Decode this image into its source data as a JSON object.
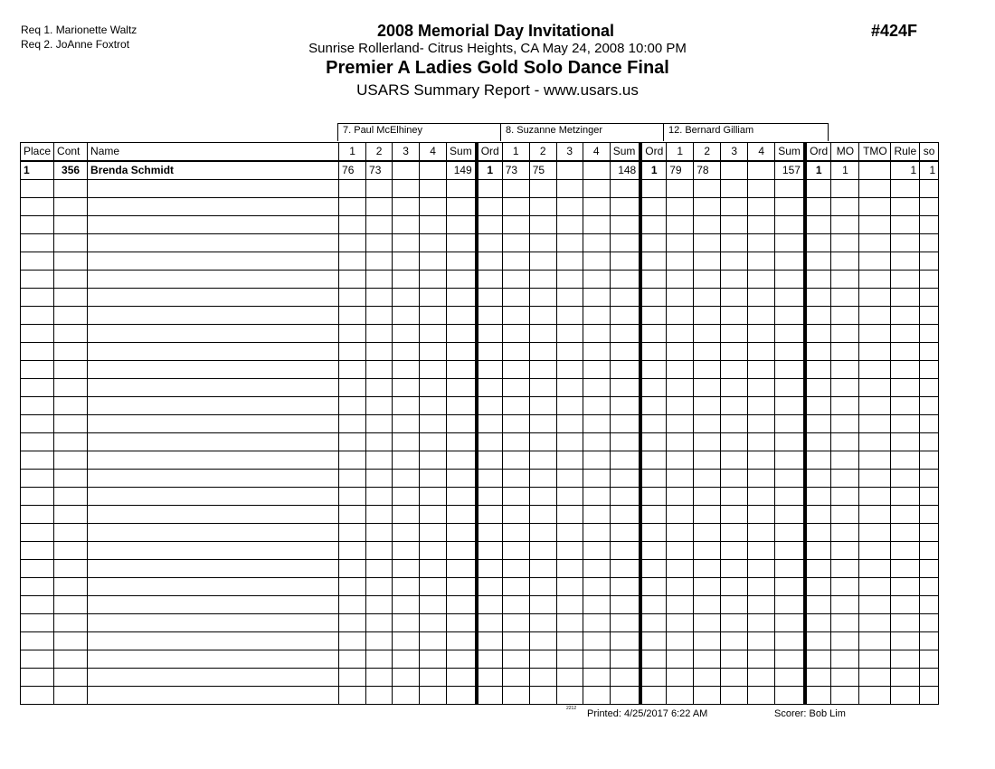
{
  "header": {
    "requirements": [
      "Req  1.  Marionette Waltz",
      "Req  2.  JoAnne Foxtrot"
    ],
    "event_title": "2008 Memorial Day Invitational",
    "venue_line": "Sunrise Rollerland- Citrus Heights, CA  May 24, 2008  10:00 PM",
    "event_name": "Premier A Ladies Gold Solo Dance Final",
    "report_title": "USARS Summary Report - www.usars.us",
    "event_number": "#424F"
  },
  "judges": [
    "7.  Paul McElhiney",
    "8.  Suzanne Metzinger",
    "12.  Bernard Gilliam"
  ],
  "columns": {
    "place": "Place",
    "cont": "Cont",
    "name": "Name",
    "judge_cols": [
      "1",
      "2",
      "3",
      "4",
      "Sum",
      "Ord"
    ],
    "mo": "MO",
    "tmo": "TMO",
    "rule": "Rule",
    "so": "so"
  },
  "rows": [
    {
      "place": "1",
      "cont": "356",
      "name": "Brenda Schmidt",
      "judges": [
        [
          "76",
          "73",
          "",
          "",
          "149",
          "1"
        ],
        [
          "73",
          "75",
          "",
          "",
          "148",
          "1"
        ],
        [
          "79",
          "78",
          "",
          "",
          "157",
          "1"
        ]
      ],
      "mo": "1",
      "tmo": "",
      "rule": "1",
      "so": "1"
    }
  ],
  "footer": {
    "code": "2212",
    "printed": "Printed:  4/25/2017  6:22 AM",
    "scorer": "Scorer:   Bob Lim"
  }
}
